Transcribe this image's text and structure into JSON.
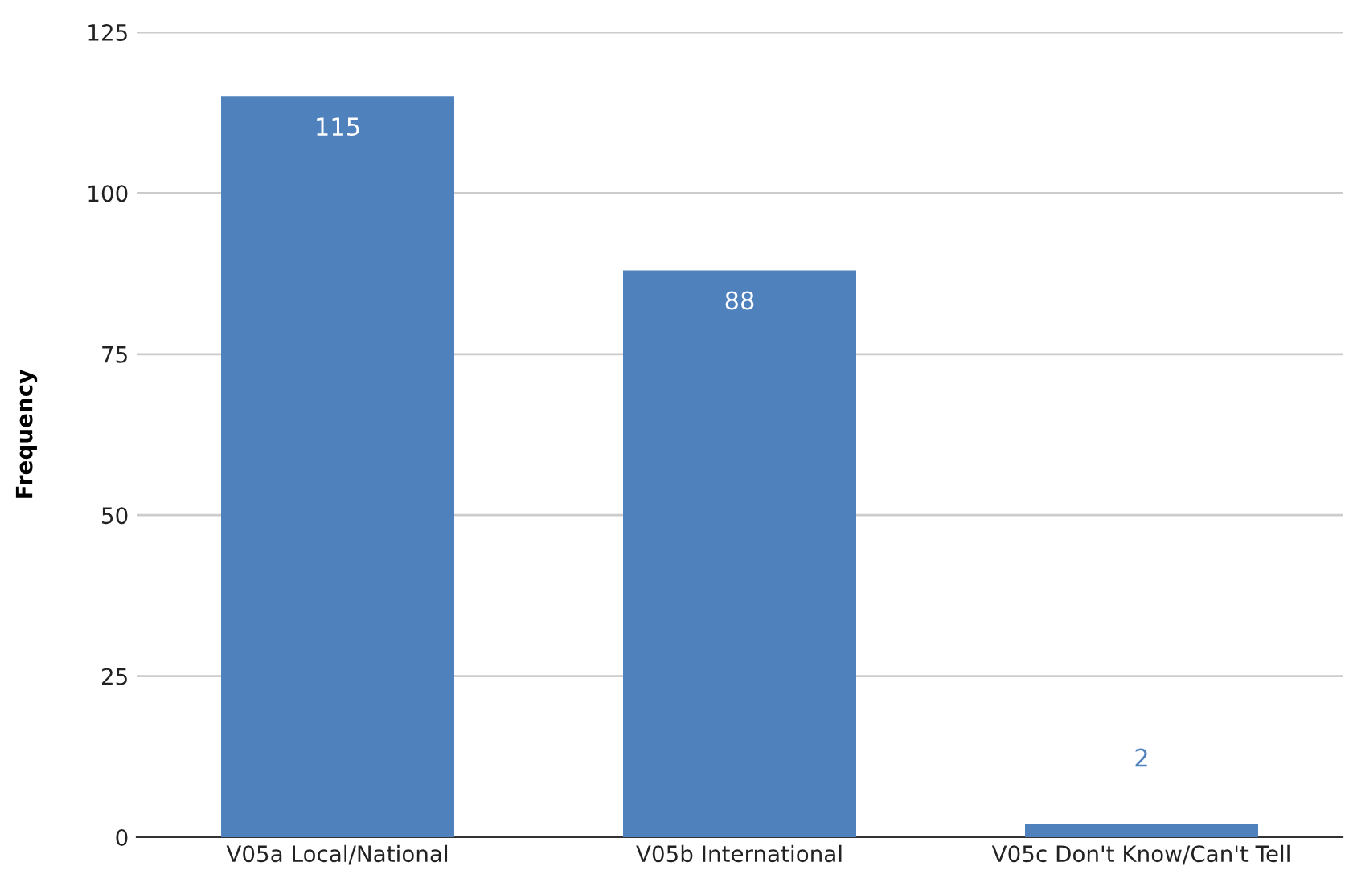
{
  "chart_data": {
    "type": "bar",
    "ylabel": "Frequency",
    "categories": [
      "V05a Local/National",
      "V05b International",
      "V05c Don't Know/Can't Tell"
    ],
    "values": [
      115,
      88,
      2
    ],
    "color": "#4f81bd",
    "ylim": [
      0,
      125
    ],
    "yticks": [
      0,
      25,
      50,
      75,
      100,
      125
    ],
    "grid": "y",
    "data_labels": true
  }
}
